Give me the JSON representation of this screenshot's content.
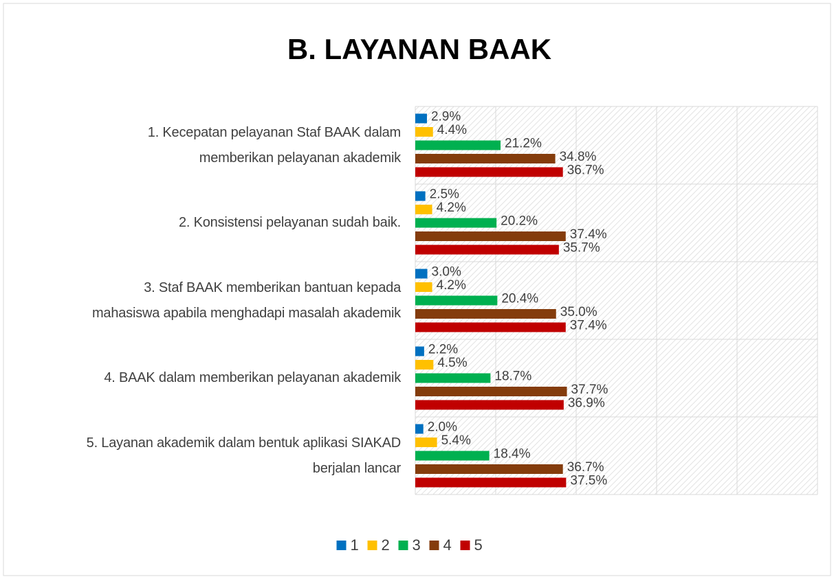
{
  "chart_data": {
    "type": "hbar",
    "title": "B. LAYANAN BAAK",
    "categories": [
      [
        "1. Kecepatan pelayanan Staf BAAK dalam",
        "memberikan pelayanan akademik"
      ],
      [
        "2. Konsistensi pelayanan sudah baik."
      ],
      [
        "3. Staf BAAK memberikan bantuan kepada",
        "mahasiswa apabila menghadapi masalah akademik"
      ],
      [
        "4. BAAK dalam memberikan pelayanan akademik"
      ],
      [
        "5. Layanan akademik dalam bentuk aplikasi SIAKAD",
        "berjalan lancar"
      ]
    ],
    "series": [
      {
        "name": "1",
        "color": "#0070c0",
        "values": [
          2.9,
          2.5,
          3.0,
          2.2,
          2.0
        ],
        "value_labels": [
          "2.9%",
          "2.5%",
          "3.0%",
          "2.2%",
          "2.0%"
        ]
      },
      {
        "name": "2",
        "color": "#ffc000",
        "values": [
          4.4,
          4.2,
          4.2,
          4.5,
          5.4
        ],
        "value_labels": [
          "4.4%",
          "4.2%",
          "4.2%",
          "4.5%",
          "5.4%"
        ]
      },
      {
        "name": "3",
        "color": "#00b050",
        "values": [
          21.2,
          20.2,
          20.4,
          18.7,
          18.4
        ],
        "value_labels": [
          "21.2%",
          "20.2%",
          "20.4%",
          "18.7%",
          "18.4%"
        ]
      },
      {
        "name": "4",
        "color": "#843c0c",
        "values": [
          34.8,
          37.4,
          35.0,
          37.7,
          36.7
        ],
        "value_labels": [
          "34.8%",
          "37.4%",
          "35.0%",
          "37.7%",
          "36.7%"
        ]
      },
      {
        "name": "5",
        "color": "#c00000",
        "values": [
          36.7,
          35.7,
          37.4,
          36.9,
          37.5
        ],
        "value_labels": [
          "36.7%",
          "35.7%",
          "37.4%",
          "36.9%",
          "37.5%"
        ]
      }
    ],
    "xlim": [
      0,
      100
    ],
    "xticks": [
      0,
      20,
      40,
      60,
      80,
      100
    ],
    "grid": true,
    "legend": "bottom"
  }
}
